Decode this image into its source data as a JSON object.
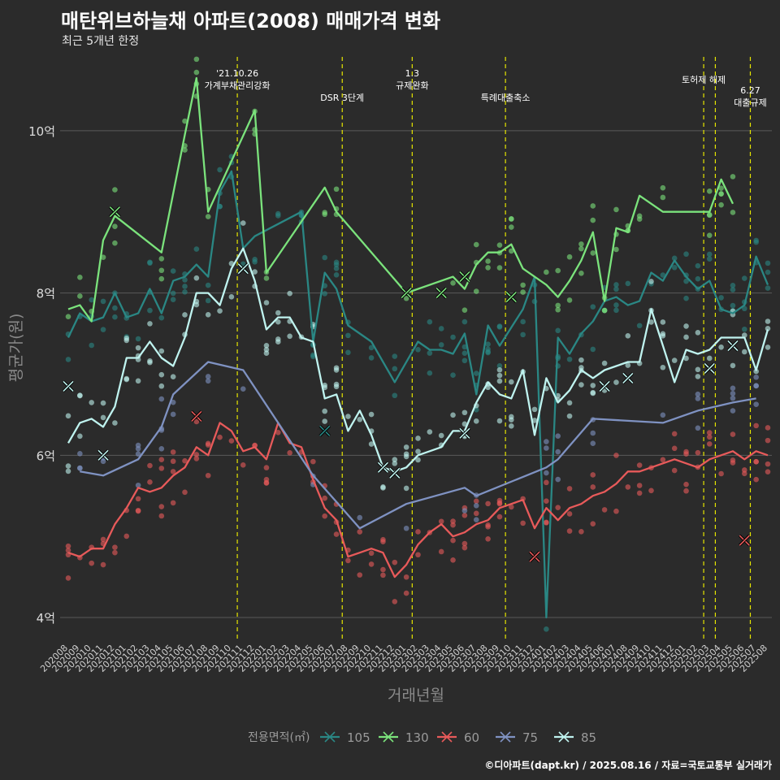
{
  "chart_data": {
    "type": "line",
    "title": "매탄위브하늘채 아파트(2008) 매매가격 변화",
    "subtitle": "최근 5개년 한정",
    "xlabel": "거래년월",
    "ylabel": "평균가(원)",
    "legend_title": "전용면적(㎡)",
    "legend_position": "bottom",
    "caption": "©디아파트(dapt.kr) / 2025.08.16 / 자료=국토교통부 실거래가",
    "grid": true,
    "ylim": [
      3.7,
      10.95
    ],
    "y_ticks": [
      4,
      6,
      8,
      10
    ],
    "y_tick_labels": [
      "4억",
      "6억",
      "8억",
      "10억"
    ],
    "x_ticks": [
      "202008",
      "202009",
      "202010",
      "202011",
      "202012",
      "202101",
      "202102",
      "202103",
      "202104",
      "202105",
      "202106",
      "202107",
      "202108",
      "202109",
      "202110",
      "202111",
      "202112",
      "202201",
      "202202",
      "202203",
      "202204",
      "202205",
      "202206",
      "202207",
      "202208",
      "202209",
      "202210",
      "202211",
      "202212",
      "202301",
      "202302",
      "202303",
      "202304",
      "202305",
      "202306",
      "202307",
      "202308",
      "202309",
      "202310",
      "202311",
      "202312",
      "202401",
      "202402",
      "202403",
      "202404",
      "202405",
      "202406",
      "202407",
      "202408",
      "202409",
      "202410",
      "202411",
      "202412",
      "202501",
      "202502",
      "202503",
      "202504",
      "202505",
      "202506",
      "202507",
      "202508"
    ],
    "events": [
      {
        "x": 14.5,
        "label": "'21.10.26\n가계부채관리강화",
        "row": 0
      },
      {
        "x": 23.5,
        "label": "DSR 3단계",
        "row": 2
      },
      {
        "x": 29.5,
        "label": "1.3\n규제완화",
        "row": 0
      },
      {
        "x": 37.5,
        "label": "특례대출축소",
        "row": 2
      },
      {
        "x": 54.5,
        "label": "토허제 해제",
        "row": 1
      },
      {
        "x": 55.5,
        "label": "",
        "row": 1
      },
      {
        "x": 58.5,
        "label": "6.27\n대출규제",
        "row": 3
      }
    ],
    "series": [
      {
        "name": "105",
        "color": "#2a8784",
        "points": [
          [
            0,
            7.45
          ],
          [
            1,
            7.75
          ],
          [
            2,
            7.65
          ],
          [
            3,
            7.7
          ],
          [
            4,
            8.0
          ],
          [
            5,
            7.7
          ],
          [
            6,
            7.75
          ],
          [
            7,
            8.05
          ],
          [
            8,
            7.75
          ],
          [
            9,
            8.15
          ],
          [
            10,
            8.2
          ],
          [
            11,
            8.35
          ],
          [
            12,
            8.2
          ],
          [
            13,
            9.25
          ],
          [
            14,
            9.5
          ],
          [
            15,
            8.55
          ],
          [
            16,
            8.7
          ],
          [
            18,
            8.85
          ],
          [
            20,
            9.0
          ],
          [
            21,
            7.4
          ],
          [
            22,
            8.25
          ],
          [
            23,
            8.05
          ],
          [
            24,
            7.6
          ],
          [
            26,
            7.4
          ],
          [
            28,
            6.9
          ],
          [
            30,
            7.4
          ],
          [
            31,
            7.3
          ],
          [
            32,
            7.3
          ],
          [
            33,
            7.25
          ],
          [
            34,
            7.5
          ],
          [
            35,
            6.75
          ],
          [
            36,
            7.6
          ],
          [
            37,
            7.35
          ],
          [
            39,
            7.8
          ],
          [
            40,
            8.2
          ],
          [
            41,
            4.0
          ],
          [
            42,
            7.45
          ],
          [
            43,
            7.25
          ],
          [
            44,
            7.5
          ],
          [
            45,
            7.65
          ],
          [
            46,
            7.9
          ],
          [
            47,
            7.95
          ],
          [
            48,
            7.85
          ],
          [
            49,
            7.9
          ],
          [
            50,
            8.25
          ],
          [
            51,
            8.15
          ],
          [
            52,
            8.4
          ],
          [
            53,
            8.2
          ],
          [
            54,
            8.05
          ],
          [
            55,
            8.15
          ],
          [
            56,
            7.8
          ],
          [
            57,
            7.75
          ],
          [
            58,
            7.85
          ],
          [
            59,
            8.45
          ],
          [
            60,
            8.1
          ]
        ]
      },
      {
        "name": "130",
        "color": "#7be37c",
        "points": [
          [
            0,
            7.8
          ],
          [
            1,
            7.85
          ],
          [
            2,
            7.65
          ],
          [
            3,
            8.65
          ],
          [
            4,
            8.95
          ],
          [
            8,
            8.5
          ],
          [
            10,
            9.95
          ],
          [
            11,
            10.65
          ],
          [
            12,
            9.0
          ],
          [
            16,
            10.25
          ],
          [
            17,
            8.25
          ],
          [
            22,
            9.3
          ],
          [
            23,
            9.0
          ],
          [
            29,
            8.0
          ],
          [
            33,
            8.2
          ],
          [
            34,
            8.05
          ],
          [
            35,
            8.35
          ],
          [
            36,
            8.5
          ],
          [
            37,
            8.5
          ],
          [
            38,
            8.6
          ],
          [
            39,
            8.3
          ],
          [
            41,
            8.1
          ],
          [
            42,
            7.95
          ],
          [
            43,
            8.15
          ],
          [
            44,
            8.4
          ],
          [
            45,
            8.75
          ],
          [
            46,
            7.9
          ],
          [
            47,
            8.8
          ],
          [
            48,
            8.75
          ],
          [
            49,
            9.2
          ],
          [
            51,
            9.0
          ],
          [
            55,
            9.0
          ],
          [
            56,
            9.4
          ],
          [
            57,
            9.1
          ]
        ]
      },
      {
        "name": "60",
        "color": "#e85a5a",
        "points": [
          [
            0,
            4.8
          ],
          [
            1,
            4.75
          ],
          [
            2,
            4.85
          ],
          [
            3,
            4.85
          ],
          [
            4,
            5.15
          ],
          [
            5,
            5.35
          ],
          [
            6,
            5.6
          ],
          [
            7,
            5.55
          ],
          [
            8,
            5.6
          ],
          [
            9,
            5.75
          ],
          [
            10,
            5.85
          ],
          [
            11,
            6.1
          ],
          [
            12,
            6.0
          ],
          [
            13,
            6.4
          ],
          [
            14,
            6.3
          ],
          [
            15,
            6.05
          ],
          [
            16,
            6.1
          ],
          [
            17,
            5.95
          ],
          [
            18,
            6.4
          ],
          [
            19,
            6.15
          ],
          [
            20,
            6.1
          ],
          [
            21,
            5.7
          ],
          [
            22,
            5.35
          ],
          [
            23,
            5.2
          ],
          [
            24,
            4.75
          ],
          [
            25,
            4.8
          ],
          [
            26,
            4.85
          ],
          [
            27,
            4.8
          ],
          [
            28,
            4.5
          ],
          [
            29,
            4.65
          ],
          [
            30,
            4.9
          ],
          [
            31,
            5.05
          ],
          [
            32,
            5.15
          ],
          [
            33,
            5.0
          ],
          [
            34,
            5.05
          ],
          [
            35,
            5.15
          ],
          [
            36,
            5.2
          ],
          [
            37,
            5.35
          ],
          [
            38,
            5.4
          ],
          [
            39,
            5.45
          ],
          [
            40,
            5.1
          ],
          [
            41,
            5.35
          ],
          [
            42,
            5.2
          ],
          [
            43,
            5.35
          ],
          [
            44,
            5.4
          ],
          [
            45,
            5.5
          ],
          [
            46,
            5.55
          ],
          [
            47,
            5.65
          ],
          [
            48,
            5.8
          ],
          [
            49,
            5.8
          ],
          [
            50,
            5.85
          ],
          [
            51,
            5.9
          ],
          [
            52,
            5.95
          ],
          [
            53,
            5.9
          ],
          [
            54,
            5.85
          ],
          [
            55,
            5.95
          ],
          [
            56,
            6.0
          ],
          [
            57,
            6.05
          ],
          [
            58,
            5.95
          ],
          [
            59,
            6.05
          ],
          [
            60,
            6.0
          ]
        ]
      },
      {
        "name": "75",
        "color": "#7f92c2",
        "points": [
          [
            1,
            5.8
          ],
          [
            3,
            5.75
          ],
          [
            6,
            5.95
          ],
          [
            8,
            6.35
          ],
          [
            9,
            6.75
          ],
          [
            12,
            7.15
          ],
          [
            15,
            7.05
          ],
          [
            21,
            5.75
          ],
          [
            25,
            5.1
          ],
          [
            29,
            5.4
          ],
          [
            34,
            5.6
          ],
          [
            35,
            5.5
          ],
          [
            41,
            5.85
          ],
          [
            42,
            5.95
          ],
          [
            45,
            6.45
          ],
          [
            51,
            6.4
          ],
          [
            54,
            6.55
          ],
          [
            57,
            6.65
          ],
          [
            59,
            6.7
          ]
        ]
      },
      {
        "name": "85",
        "color": "#bff3ef",
        "points": [
          [
            0,
            6.15
          ],
          [
            1,
            6.4
          ],
          [
            2,
            6.45
          ],
          [
            3,
            6.35
          ],
          [
            4,
            6.6
          ],
          [
            5,
            7.2
          ],
          [
            6,
            7.2
          ],
          [
            7,
            7.4
          ],
          [
            8,
            7.2
          ],
          [
            9,
            7.1
          ],
          [
            10,
            7.45
          ],
          [
            11,
            8.0
          ],
          [
            12,
            8.0
          ],
          [
            13,
            7.85
          ],
          [
            14,
            8.3
          ],
          [
            15,
            8.55
          ],
          [
            16,
            8.15
          ],
          [
            17,
            7.55
          ],
          [
            18,
            7.7
          ],
          [
            19,
            7.7
          ],
          [
            20,
            7.45
          ],
          [
            21,
            7.4
          ],
          [
            22,
            6.7
          ],
          [
            23,
            6.75
          ],
          [
            24,
            6.3
          ],
          [
            25,
            6.55
          ],
          [
            26,
            6.25
          ],
          [
            27,
            5.85
          ],
          [
            28,
            5.8
          ],
          [
            29,
            5.85
          ],
          [
            30,
            6.0
          ],
          [
            31,
            6.05
          ],
          [
            32,
            6.1
          ],
          [
            33,
            6.3
          ],
          [
            34,
            6.3
          ],
          [
            35,
            6.65
          ],
          [
            36,
            6.9
          ],
          [
            37,
            6.75
          ],
          [
            38,
            6.7
          ],
          [
            39,
            7.05
          ],
          [
            40,
            6.25
          ],
          [
            41,
            6.95
          ],
          [
            42,
            6.65
          ],
          [
            43,
            6.8
          ],
          [
            44,
            7.05
          ],
          [
            45,
            6.95
          ],
          [
            46,
            7.05
          ],
          [
            47,
            7.1
          ],
          [
            48,
            7.15
          ],
          [
            49,
            7.15
          ],
          [
            50,
            7.8
          ],
          [
            51,
            7.35
          ],
          [
            52,
            6.9
          ],
          [
            53,
            7.3
          ],
          [
            54,
            7.25
          ],
          [
            55,
            7.3
          ],
          [
            56,
            7.45
          ],
          [
            57,
            7.45
          ],
          [
            58,
            7.45
          ],
          [
            59,
            7.05
          ],
          [
            60,
            7.55
          ]
        ]
      }
    ],
    "highlight_marks": [
      {
        "series": "105",
        "x": 22,
        "y": 6.3
      },
      {
        "series": "130",
        "x": 4,
        "y": 9.0
      },
      {
        "series": "130",
        "x": 29,
        "y": 8.0
      },
      {
        "series": "130",
        "x": 32,
        "y": 8.0
      },
      {
        "series": "130",
        "x": 34,
        "y": 8.2
      },
      {
        "series": "130",
        "x": 38,
        "y": 7.95
      },
      {
        "series": "60",
        "x": 11,
        "y": 6.48
      },
      {
        "series": "60",
        "x": 40,
        "y": 4.75
      },
      {
        "series": "60",
        "x": 58,
        "y": 4.95
      },
      {
        "series": "85",
        "x": 0,
        "y": 6.85
      },
      {
        "series": "85",
        "x": 3,
        "y": 6.0
      },
      {
        "series": "85",
        "x": 15,
        "y": 8.3
      },
      {
        "series": "85",
        "x": 27,
        "y": 5.85
      },
      {
        "series": "85",
        "x": 28,
        "y": 5.78
      },
      {
        "series": "85",
        "x": 34,
        "y": 6.27
      },
      {
        "series": "85",
        "x": 46,
        "y": 6.85
      },
      {
        "series": "85",
        "x": 48,
        "y": 6.95
      },
      {
        "series": "85",
        "x": 55,
        "y": 7.07
      },
      {
        "series": "85",
        "x": 57,
        "y": 7.35
      }
    ]
  }
}
